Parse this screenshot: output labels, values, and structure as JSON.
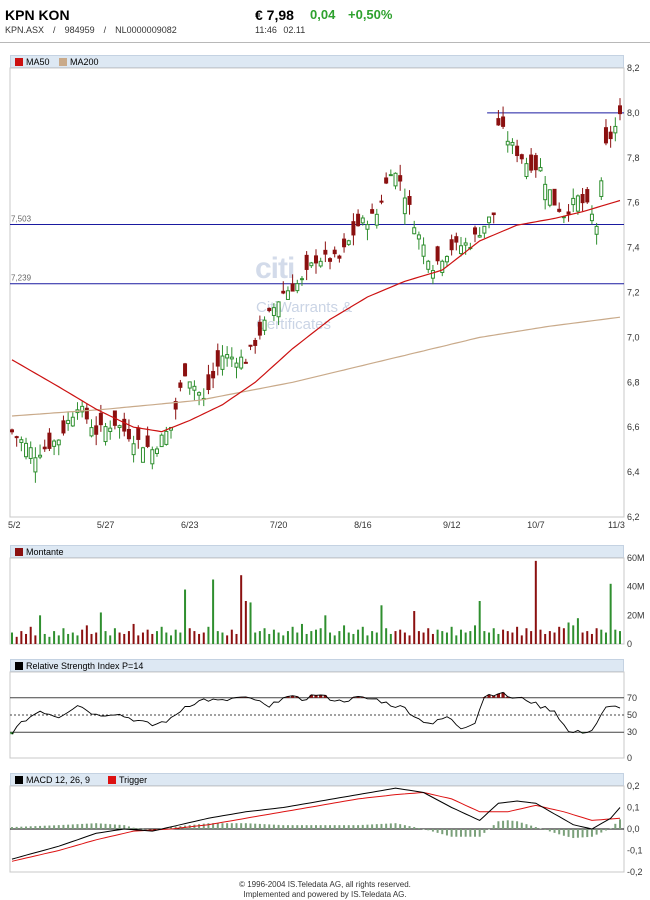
{
  "header": {
    "name": "KPN KON",
    "price": "€ 7,98",
    "change_abs": "0,04",
    "change_pct": "+0,50%",
    "exchange": "KPN.ASX",
    "wkn": "984959",
    "isin": "NL0000009082",
    "time": "11:46",
    "date": "02.11",
    "separator": "/"
  },
  "watermark": {
    "logo": "citi",
    "line1": "CitiWarrants &",
    "line2": "Certificates"
  },
  "colors": {
    "up": "#2f8f2f",
    "down": "#8b1010",
    "ma50": "#cc1111",
    "ma200": "#c9aa8a",
    "hline": "#1a1aa0",
    "accent_green": "#2ea12e"
  },
  "chart_data": [
    {
      "type": "candlestick",
      "legend": [
        {
          "name": "MA50",
          "color": "#cc1111"
        },
        {
          "name": "MA200",
          "color": "#c9aa8a"
        }
      ],
      "x_tick_labels": [
        "5/2",
        "5/27",
        "6/23",
        "7/20",
        "8/16",
        "9/12",
        "10/7",
        "11/3"
      ],
      "ylim": [
        6.2,
        8.2
      ],
      "y_tick_labels": [
        "8,2",
        "8,0",
        "7,8",
        "7,6",
        "7,4",
        "7,2",
        "7,0",
        "6,8",
        "6,6",
        "6,4",
        "6,2"
      ],
      "horizontal_lines": [
        {
          "value": 7.503,
          "label": "7,503"
        },
        {
          "value": 7.239,
          "label": "7,239"
        },
        {
          "value": 8.0,
          "label": "",
          "x_from_index": 108
        }
      ],
      "close_anchors": [
        [
          0,
          6.58
        ],
        [
          5,
          6.48
        ],
        [
          10,
          6.55
        ],
        [
          14,
          6.7
        ],
        [
          18,
          6.58
        ],
        [
          22,
          6.62
        ],
        [
          26,
          6.55
        ],
        [
          30,
          6.5
        ],
        [
          34,
          6.6
        ],
        [
          37,
          6.85
        ],
        [
          41,
          6.72
        ],
        [
          45,
          6.92
        ],
        [
          50,
          6.9
        ],
        [
          55,
          7.1
        ],
        [
          58,
          7.2
        ],
        [
          62,
          7.25
        ],
        [
          65,
          7.35
        ],
        [
          70,
          7.35
        ],
        [
          74,
          7.5
        ],
        [
          78,
          7.55
        ],
        [
          81,
          7.75
        ],
        [
          83,
          7.7
        ],
        [
          87,
          7.45
        ],
        [
          90,
          7.32
        ],
        [
          94,
          7.4
        ],
        [
          98,
          7.42
        ],
        [
          101,
          7.5
        ],
        [
          103,
          7.55
        ],
        [
          104,
          7.95
        ],
        [
          107,
          7.85
        ],
        [
          110,
          7.78
        ],
        [
          113,
          7.75
        ],
        [
          116,
          7.6
        ],
        [
          118,
          7.55
        ],
        [
          121,
          7.62
        ],
        [
          123,
          7.58
        ],
        [
          125,
          7.5
        ],
        [
          127,
          7.85
        ],
        [
          130,
          7.98
        ]
      ],
      "ma50_anchors": [
        [
          0,
          6.9
        ],
        [
          10,
          6.78
        ],
        [
          18,
          6.68
        ],
        [
          26,
          6.6
        ],
        [
          32,
          6.58
        ],
        [
          38,
          6.63
        ],
        [
          45,
          6.7
        ],
        [
          52,
          6.8
        ],
        [
          60,
          6.95
        ],
        [
          68,
          7.08
        ],
        [
          76,
          7.18
        ],
        [
          84,
          7.25
        ],
        [
          92,
          7.3
        ],
        [
          100,
          7.43
        ],
        [
          108,
          7.5
        ],
        [
          116,
          7.53
        ],
        [
          122,
          7.56
        ],
        [
          130,
          7.61
        ]
      ],
      "ma200_anchors": [
        [
          0,
          6.65
        ],
        [
          20,
          6.68
        ],
        [
          40,
          6.72
        ],
        [
          60,
          6.8
        ],
        [
          80,
          6.9
        ],
        [
          100,
          7.0
        ],
        [
          115,
          7.05
        ],
        [
          130,
          7.09
        ]
      ]
    },
    {
      "type": "bar",
      "legend": [
        {
          "name": "Montante",
          "color": "#8b1010"
        }
      ],
      "y_tick_labels": [
        "60M",
        "40M",
        "20M",
        "0"
      ],
      "ylim": [
        0,
        60
      ],
      "values_millions": [
        8,
        5,
        9,
        7,
        12,
        6,
        20,
        7,
        5,
        9,
        6,
        11,
        7,
        8,
        6,
        10,
        13,
        7,
        8,
        22,
        9,
        6,
        11,
        8,
        7,
        9,
        14,
        6,
        8,
        10,
        7,
        9,
        12,
        8,
        6,
        10,
        8,
        38,
        11,
        9,
        7,
        8,
        12,
        45,
        9,
        8,
        6,
        10,
        7,
        48,
        30,
        29,
        8,
        9,
        11,
        7,
        10,
        8,
        6,
        9,
        12,
        8,
        14,
        7,
        9,
        10,
        11,
        20,
        8,
        6,
        9,
        13,
        8,
        7,
        10,
        12,
        6,
        9,
        8,
        27,
        11,
        7,
        9,
        10,
        8,
        6,
        23,
        9,
        8,
        11,
        7,
        10,
        9,
        8,
        12,
        6,
        10,
        8,
        9,
        13,
        30,
        9,
        8,
        11,
        7,
        10,
        9,
        8,
        12,
        6,
        11,
        9,
        58,
        10,
        7,
        9,
        8,
        12,
        11,
        15,
        13,
        18,
        8,
        9,
        7,
        11,
        10,
        8,
        42,
        10,
        9
      ]
    },
    {
      "type": "line",
      "legend": [
        {
          "name": "Relative Strength Index P=14",
          "color": "#000000"
        }
      ],
      "y_tick_labels": [
        "70",
        "50",
        "30",
        "0"
      ],
      "ylim": [
        0,
        100
      ],
      "levels": [
        70,
        50,
        30
      ],
      "rsi_anchors": [
        [
          0,
          30
        ],
        [
          3,
          45
        ],
        [
          6,
          55
        ],
        [
          10,
          48
        ],
        [
          14,
          62
        ],
        [
          18,
          50
        ],
        [
          22,
          52
        ],
        [
          26,
          45
        ],
        [
          30,
          38
        ],
        [
          34,
          45
        ],
        [
          37,
          60
        ],
        [
          41,
          68
        ],
        [
          45,
          66
        ],
        [
          48,
          70
        ],
        [
          52,
          68
        ],
        [
          55,
          58
        ],
        [
          58,
          72
        ],
        [
          62,
          68
        ],
        [
          65,
          74
        ],
        [
          70,
          66
        ],
        [
          74,
          70
        ],
        [
          78,
          68
        ],
        [
          81,
          62
        ],
        [
          84,
          58
        ],
        [
          87,
          45
        ],
        [
          90,
          40
        ],
        [
          93,
          48
        ],
        [
          96,
          35
        ],
        [
          99,
          42
        ],
        [
          101,
          72
        ],
        [
          104,
          76
        ],
        [
          107,
          70
        ],
        [
          110,
          68
        ],
        [
          113,
          60
        ],
        [
          116,
          55
        ],
        [
          119,
          30
        ],
        [
          121,
          30
        ],
        [
          124,
          32
        ],
        [
          127,
          58
        ],
        [
          130,
          60
        ]
      ]
    },
    {
      "type": "line",
      "legend": [
        {
          "name": "MACD 12, 26, 9",
          "color": "#000000"
        },
        {
          "name": "Trigger",
          "color": "#dd1111"
        }
      ],
      "y_tick_labels": [
        "0,2",
        "0,1",
        "0,0",
        "-0,1",
        "-0,2"
      ],
      "ylim": [
        -0.2,
        0.2
      ],
      "macd_anchors": [
        [
          0,
          -0.14
        ],
        [
          10,
          -0.08
        ],
        [
          18,
          -0.02
        ],
        [
          24,
          0.0
        ],
        [
          30,
          -0.01
        ],
        [
          36,
          0.02
        ],
        [
          42,
          0.05
        ],
        [
          50,
          0.08
        ],
        [
          58,
          0.1
        ],
        [
          66,
          0.13
        ],
        [
          74,
          0.16
        ],
        [
          82,
          0.19
        ],
        [
          88,
          0.17
        ],
        [
          94,
          0.1
        ],
        [
          100,
          0.04
        ],
        [
          104,
          0.12
        ],
        [
          108,
          0.13
        ],
        [
          112,
          0.12
        ],
        [
          116,
          0.07
        ],
        [
          120,
          0.02
        ],
        [
          124,
          0.0
        ],
        [
          128,
          0.05
        ],
        [
          130,
          0.1
        ]
      ],
      "trigger_anchors": [
        [
          0,
          -0.15
        ],
        [
          10,
          -0.1
        ],
        [
          18,
          -0.05
        ],
        [
          26,
          -0.01
        ],
        [
          34,
          0.0
        ],
        [
          42,
          0.02
        ],
        [
          50,
          0.05
        ],
        [
          58,
          0.08
        ],
        [
          66,
          0.11
        ],
        [
          74,
          0.14
        ],
        [
          82,
          0.16
        ],
        [
          88,
          0.17
        ],
        [
          94,
          0.14
        ],
        [
          100,
          0.08
        ],
        [
          106,
          0.08
        ],
        [
          112,
          0.11
        ],
        [
          118,
          0.08
        ],
        [
          124,
          0.04
        ],
        [
          130,
          0.05
        ]
      ]
    }
  ],
  "footer": {
    "line1": "© 1996-2004 IS.Teledata AG, all rights reserved.",
    "line2": "Implemented and powered by IS.Teledata AG."
  }
}
